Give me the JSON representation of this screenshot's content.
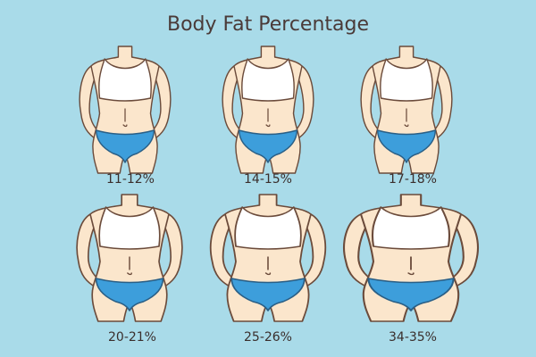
{
  "title": "Body Fat Percentage",
  "figures": [
    {
      "label": "11-12%"
    },
    {
      "label": "14-15%"
    },
    {
      "label": "17-18%"
    },
    {
      "label": "20-21%"
    },
    {
      "label": "25-26%"
    },
    {
      "label": "34-35%"
    }
  ]
}
